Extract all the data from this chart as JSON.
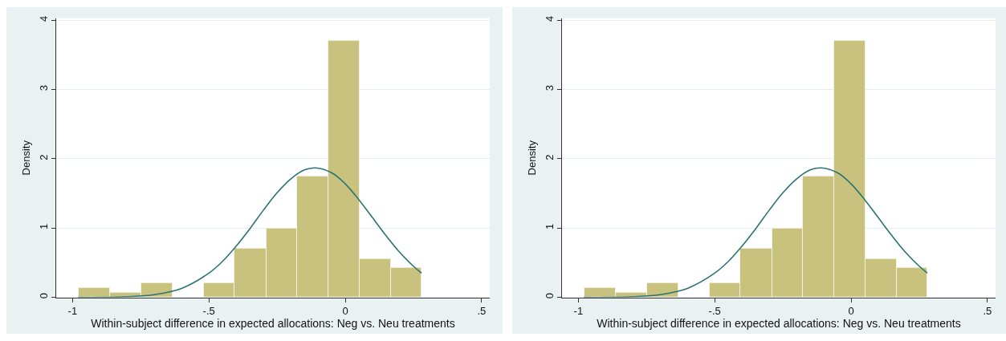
{
  "chart_data": [
    {
      "type": "histogram",
      "xlabel": "Within-subject difference in expected allocations: Neg vs. Neu treatments",
      "ylabel": "Density",
      "bins": [
        -0.978,
        -0.863,
        -0.748,
        -0.633,
        -0.519,
        -0.405,
        -0.29,
        -0.177,
        -0.062,
        0.053,
        0.167,
        0.281
      ],
      "values": [
        0.14,
        0.07,
        0.21,
        0,
        0.21,
        0.7,
        0.99,
        1.75,
        3.7,
        0.56,
        0.43
      ],
      "color": "#c9c27f",
      "series": [
        {
          "type": "line",
          "color": "#2a7470",
          "x": [
            -0.98,
            -0.9,
            -0.8,
            -0.7,
            -0.6,
            -0.5,
            -0.45,
            -0.4,
            -0.35,
            -0.3,
            -0.25,
            -0.2,
            -0.15,
            -0.11,
            -0.05,
            0,
            0.05,
            0.1,
            0.15,
            0.2,
            0.25,
            0.28
          ],
          "values": [
            0,
            0,
            0.01,
            0.04,
            0.13,
            0.35,
            0.52,
            0.74,
            0.99,
            1.26,
            1.51,
            1.71,
            1.84,
            1.87,
            1.8,
            1.64,
            1.41,
            1.15,
            0.89,
            0.65,
            0.45,
            0.35
          ]
        }
      ],
      "xlim": [
        -1.06,
        0.53
      ],
      "xticks": [
        {
          "value": -1,
          "label": "-1"
        },
        {
          "value": -0.5,
          "label": "-.5"
        },
        0,
        {
          "value": 0.5,
          "label": ".5"
        }
      ],
      "ylim": [
        0,
        4.03
      ],
      "yticks": [
        0,
        1,
        2,
        3,
        4
      ],
      "grid": "y"
    },
    {
      "type": "histogram",
      "xlabel": "Within-subject difference in expected allocations: Neg vs. Neu treatments",
      "ylabel": "Density",
      "bins": [
        -0.978,
        -0.863,
        -0.748,
        -0.633,
        -0.519,
        -0.405,
        -0.29,
        -0.177,
        -0.062,
        0.053,
        0.167,
        0.281
      ],
      "values": [
        0.14,
        0.07,
        0.21,
        0,
        0.21,
        0.7,
        0.99,
        1.75,
        3.7,
        0.56,
        0.43
      ],
      "color": "#c9c27f",
      "series": [
        {
          "type": "line",
          "color": "#2a7470",
          "x": [
            -0.98,
            -0.9,
            -0.8,
            -0.7,
            -0.6,
            -0.5,
            -0.45,
            -0.4,
            -0.35,
            -0.3,
            -0.25,
            -0.2,
            -0.15,
            -0.11,
            -0.05,
            0,
            0.05,
            0.1,
            0.15,
            0.2,
            0.25,
            0.28
          ],
          "values": [
            0,
            0,
            0.01,
            0.04,
            0.13,
            0.35,
            0.52,
            0.74,
            0.99,
            1.26,
            1.51,
            1.71,
            1.84,
            1.87,
            1.8,
            1.64,
            1.41,
            1.15,
            0.89,
            0.65,
            0.45,
            0.35
          ]
        }
      ],
      "xlim": [
        -1.06,
        0.53
      ],
      "xticks": [
        {
          "value": -1,
          "label": "-1"
        },
        {
          "value": -0.5,
          "label": "-.5"
        },
        0,
        {
          "value": 0.5,
          "label": ".5"
        }
      ],
      "ylim": [
        0,
        4.03
      ],
      "yticks": [
        0,
        1,
        2,
        3,
        4
      ],
      "grid": "y"
    }
  ]
}
